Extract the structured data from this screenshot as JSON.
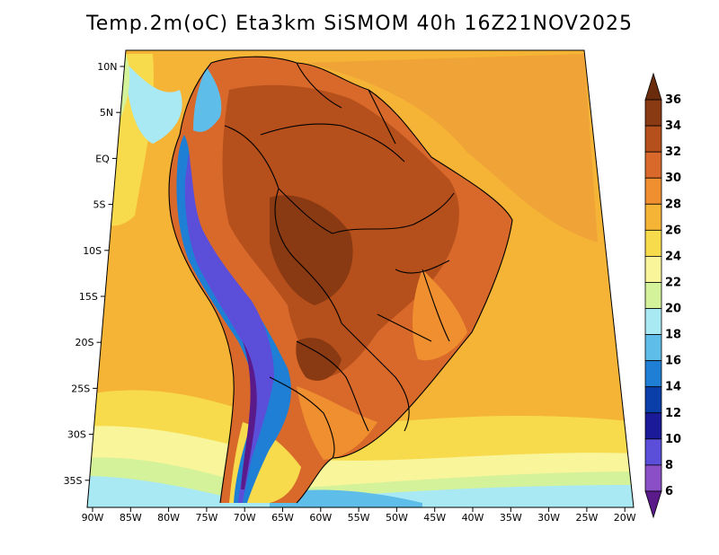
{
  "title": "Temp.2m(oC) Eta3km SiSMOM 40h 16Z21NOV2025",
  "lon_ticks": [
    "90W",
    "85W",
    "80W",
    "75W",
    "70W",
    "65W",
    "60W",
    "55W",
    "50W",
    "45W",
    "40W",
    "35W",
    "30W",
    "25W",
    "20W"
  ],
  "lat_ticks": [
    "10N",
    "5N",
    "EQ",
    "5S",
    "10S",
    "15S",
    "20S",
    "25S",
    "30S",
    "35S"
  ],
  "colorbar": {
    "labels": [
      "36",
      "34",
      "32",
      "30",
      "28",
      "26",
      "24",
      "22",
      "20",
      "18",
      "16",
      "14",
      "12",
      "10",
      "8",
      "6"
    ],
    "colors": [
      "#6b2c0e",
      "#8a3a12",
      "#b5501c",
      "#d8692b",
      "#ef8f2f",
      "#f5b436",
      "#f7db4c",
      "#f9f59a",
      "#d4f29a",
      "#a9e9f4",
      "#5fbde9",
      "#1e7fd4",
      "#0a3ea8",
      "#1b1b9a",
      "#5b4fd9",
      "#8a4fc6",
      "#5a1a8a"
    ]
  },
  "colors": {
    "ocean_warm": "#f5b436",
    "ocean_mid": "#f7db4c",
    "ocean_cool": "#f9f59a",
    "ocean_cold": "#a9e9f4",
    "land_hot": "#d8692b",
    "land_hotter": "#b5501c",
    "land_hottest": "#8a3a12",
    "andes_cold": "#5b4fd9",
    "andes_cool": "#1e7fd4",
    "border": "#000000"
  }
}
